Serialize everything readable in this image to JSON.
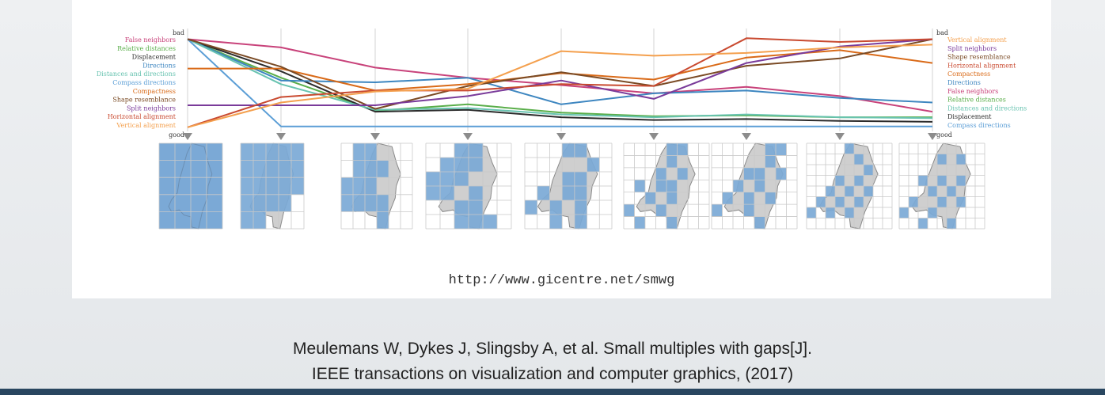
{
  "slide": {
    "url": "http://www.gicentre.net/smwg",
    "citation_line1": "Meulemans W, Dykes J, Slingsby A, et al. Small multiples with gaps[J].",
    "citation_line2": "IEEE transactions on visualization and computer graphics, (2017)",
    "accent_bar_color": "#294660"
  },
  "chart_data": {
    "type": "line",
    "subtype": "parallel-coordinates",
    "title": "",
    "top_label": "bad",
    "bottom_label": "good",
    "ylim": [
      0,
      1
    ],
    "axes_count": 9,
    "left_labels": [
      "False neighbors",
      "Relative distances",
      "Displacement",
      "Directions",
      "Distances and directions",
      "Compass directions",
      "Compactness",
      "Shape resemblance",
      "Split neighbors",
      "Horizontal alignment",
      "Vertical alignment"
    ],
    "right_labels": [
      "Vertical alignment",
      "Split neighbors",
      "Shape resemblance",
      "Horizontal alignment",
      "Compactness",
      "Directions",
      "False neighbors",
      "Relative distances",
      "Distances and directions",
      "Displacement",
      "Compass directions"
    ],
    "series": [
      {
        "name": "False neighbors",
        "color": "#c8427a",
        "values": [
          0.97,
          0.88,
          0.66,
          0.55,
          0.47,
          0.38,
          0.45,
          0.35,
          0.18
        ]
      },
      {
        "name": "Relative distances",
        "color": "#5aae4a",
        "values": [
          0.97,
          0.55,
          0.19,
          0.26,
          0.17,
          0.13,
          0.14,
          0.12,
          0.12
        ]
      },
      {
        "name": "Displacement",
        "color": "#2c2c2c",
        "values": [
          0.97,
          0.62,
          0.18,
          0.2,
          0.12,
          0.09,
          0.1,
          0.08,
          0.07
        ]
      },
      {
        "name": "Directions",
        "color": "#3d86c0",
        "values": [
          0.97,
          0.52,
          0.5,
          0.55,
          0.26,
          0.38,
          0.41,
          0.33,
          0.28
        ]
      },
      {
        "name": "Distances and directions",
        "color": "#68c3b0",
        "values": [
          0.97,
          0.48,
          0.2,
          0.22,
          0.15,
          0.12,
          0.15,
          0.12,
          0.11
        ]
      },
      {
        "name": "Compass directions",
        "color": "#5b9ed6",
        "values": [
          0.97,
          0.02,
          0.02,
          0.02,
          0.02,
          0.02,
          0.02,
          0.02,
          0.02
        ]
      },
      {
        "name": "Compactness",
        "color": "#d96a18",
        "values": [
          0.65,
          0.65,
          0.41,
          0.48,
          0.6,
          0.53,
          0.77,
          0.85,
          0.71
        ]
      },
      {
        "name": "Shape resemblance",
        "color": "#7a4a24",
        "values": [
          0.97,
          0.67,
          0.21,
          0.46,
          0.61,
          0.46,
          0.68,
          0.76,
          0.97
        ]
      },
      {
        "name": "Split neighbors",
        "color": "#7a3b9a",
        "values": [
          0.25,
          0.25,
          0.25,
          0.35,
          0.52,
          0.32,
          0.71,
          0.89,
          0.97
        ]
      },
      {
        "name": "Horizontal alignment",
        "color": "#c94a30",
        "values": [
          0.01,
          0.34,
          0.41,
          0.41,
          0.48,
          0.46,
          0.98,
          0.94,
          0.97
        ]
      },
      {
        "name": "Vertical alignment",
        "color": "#f4a04e",
        "values": [
          0.01,
          0.28,
          0.4,
          0.43,
          0.84,
          0.79,
          0.82,
          0.88,
          0.91
        ]
      }
    ]
  },
  "maps": [
    {
      "grid": "4x5",
      "filled_cells": 20
    },
    {
      "grid": "5x5",
      "filled_cells": 21
    },
    {
      "grid": "5x6",
      "filled_cells": 14
    },
    {
      "grid": "6x6",
      "filled_cells": 16
    },
    {
      "grid": "6x7",
      "filled_cells": 14
    },
    {
      "grid": "7x8",
      "filled_cells": 14
    },
    {
      "grid": "7x8",
      "filled_cells": 14
    },
    {
      "grid": "8x9",
      "filled_cells": 14
    },
    {
      "grid": "8x9",
      "filled_cells": 14
    }
  ]
}
